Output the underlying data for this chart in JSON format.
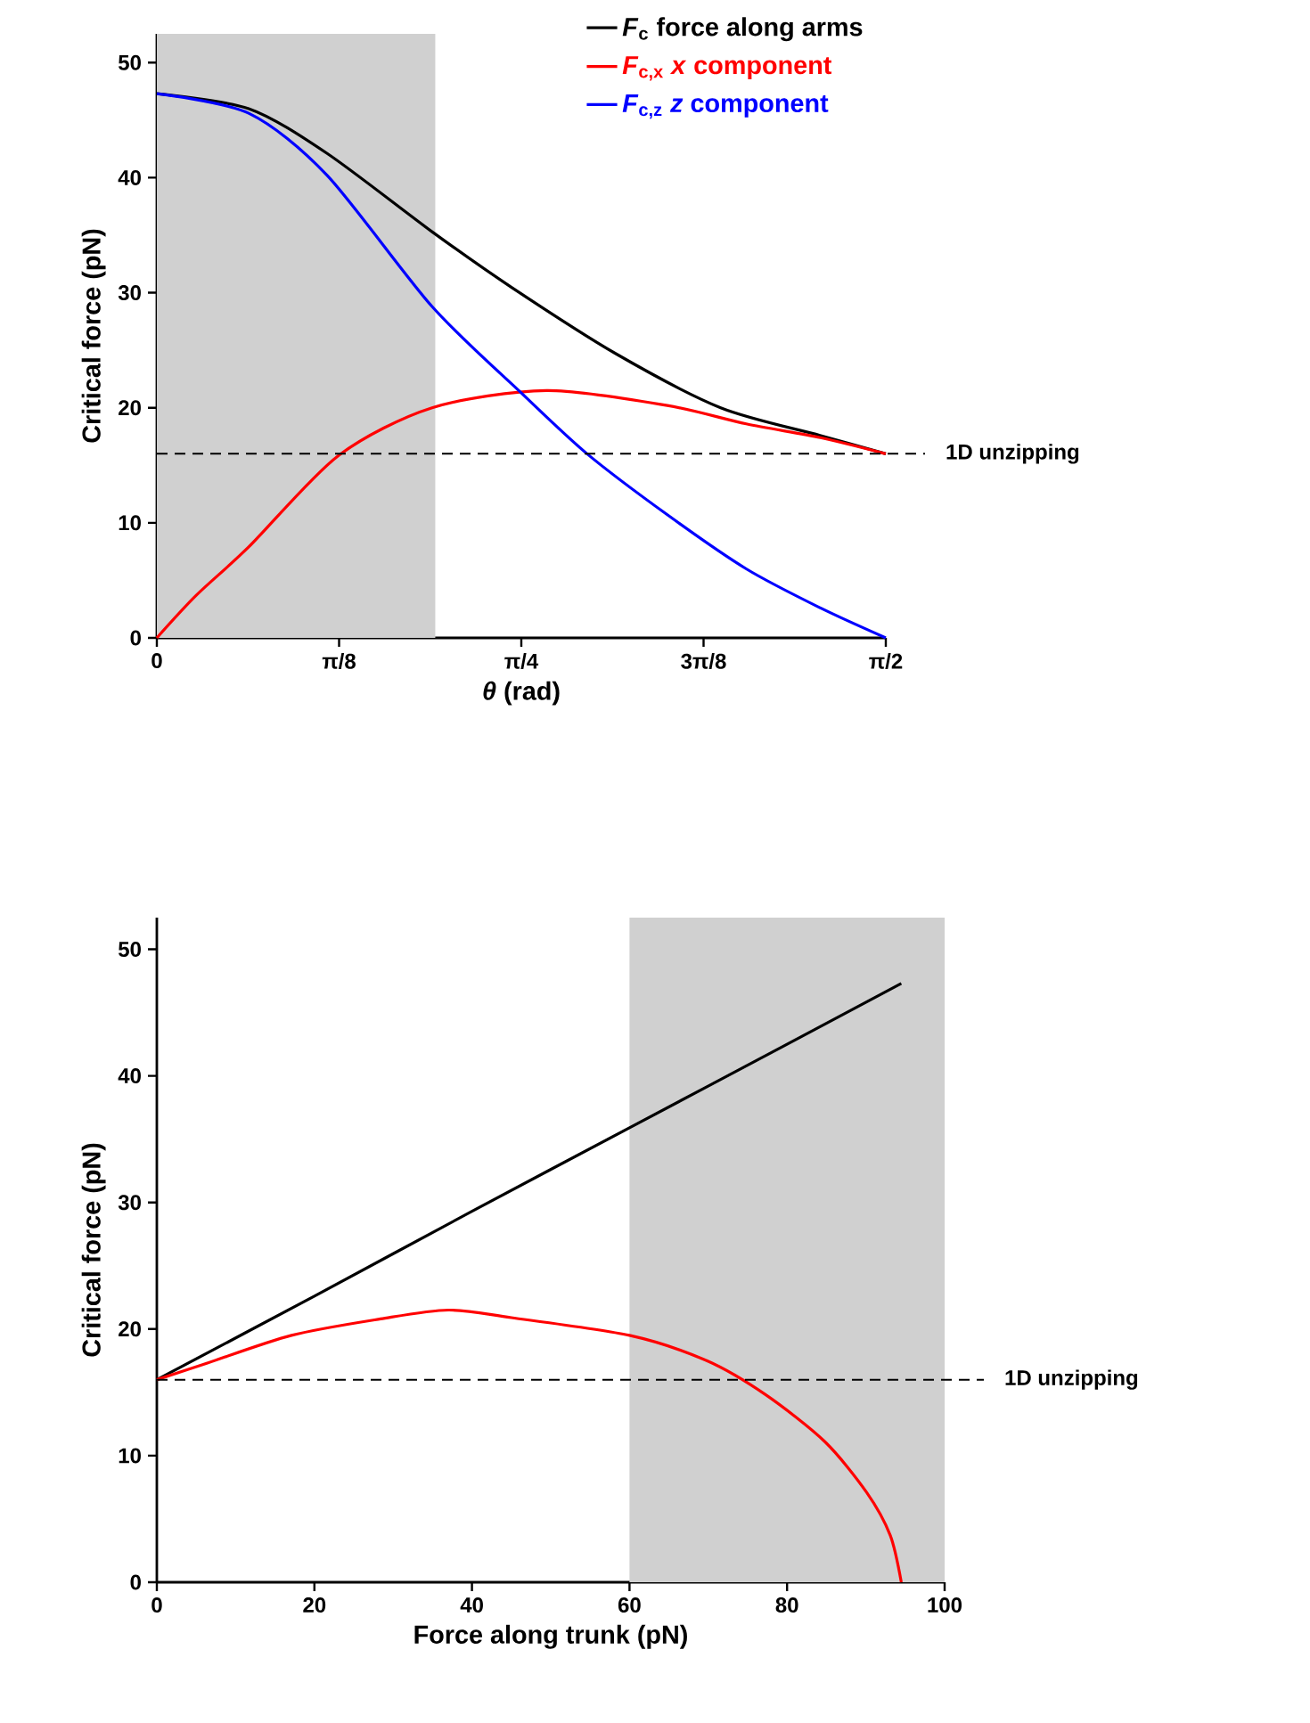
{
  "chart_data": [
    {
      "type": "line",
      "xlabel": "*θ* (rad)",
      "ylabel": "Critical force (pN)",
      "xlim": [
        0,
        1.5708
      ],
      "xticks": [
        0,
        {
          "value": 0.3927,
          "label": "π/8"
        },
        {
          "value": 0.7854,
          "label": "π/4"
        },
        {
          "value": 1.1781,
          "label": "3π/8"
        },
        {
          "value": 1.5708,
          "label": "π/2"
        }
      ],
      "ylim": [
        0,
        52.5
      ],
      "yticks": [
        0,
        10,
        20,
        30,
        40,
        50
      ],
      "legend": "top right",
      "series": [
        {
          "name": "*F*$_{c}$   force along arms",
          "color": "#000000",
          "x": [
            0,
            0.198,
            0.367,
            0.593,
            0.763,
            0.989,
            1.215,
            1.429,
            1.5708
          ],
          "values": [
            47.3,
            46.0,
            42.1,
            35.3,
            30.5,
            24.7,
            20.0,
            17.6,
            16.0
          ]
        },
        {
          "name": "*F*$_{c,x}$  *x* component",
          "color": "#ff0000",
          "x": [
            0,
            0.085,
            0.198,
            0.39,
            0.593,
            0.84,
            1.1,
            1.27,
            1.43,
            1.5708
          ],
          "values": [
            0,
            3.7,
            7.9,
            15.8,
            20.0,
            21.5,
            20.2,
            18.6,
            17.4,
            16.0
          ]
        },
        {
          "name": "*F*$_{c,z}$  *z* component",
          "color": "#0000ff",
          "x": [
            0,
            0.198,
            0.367,
            0.593,
            0.785,
            0.927,
            1.1,
            1.27,
            1.43,
            1.5708
          ],
          "values": [
            47.3,
            45.6,
            40.2,
            28.8,
            21.3,
            16.0,
            10.7,
            6.0,
            2.6,
            0
          ]
        }
      ],
      "ref_lines": [
        {
          "axis": "y",
          "value": 16,
          "label": "1D unzipping",
          "color": "#000000",
          "line_style": "dashed"
        }
      ],
      "bands": [
        {
          "axis": "x",
          "from": 0,
          "to": 0.6,
          "color": "#d0d0d0"
        }
      ]
    },
    {
      "type": "line",
      "xlabel": "Force along trunk (pN)",
      "ylabel": "Critical force (pN)",
      "xlim": [
        0,
        100
      ],
      "xticks": [
        0,
        20,
        40,
        60,
        80,
        100
      ],
      "ylim": [
        0,
        52.5
      ],
      "yticks": [
        0,
        10,
        20,
        30,
        40,
        50
      ],
      "series": [
        {
          "color": "#000000",
          "x": [
            0,
            20,
            40,
            60,
            80,
            94.5
          ],
          "values": [
            16,
            22.6,
            29.3,
            35.9,
            42.5,
            47.3
          ]
        },
        {
          "color": "#ff0000",
          "x": [
            0,
            5.9,
            17.1,
            28.4,
            37,
            45,
            60,
            69.8,
            77.3,
            84.8,
            90.1,
            93.1,
            94.5
          ],
          "values": [
            16,
            17.2,
            19.5,
            20.8,
            21.5,
            20.9,
            19.5,
            17.5,
            14.8,
            11.1,
            7.1,
            3.7,
            0
          ]
        }
      ],
      "ref_lines": [
        {
          "axis": "y",
          "value": 16,
          "label": "1D unzipping",
          "color": "#000000",
          "line_style": "dashed"
        }
      ],
      "bands": [
        {
          "axis": "x",
          "from": 60,
          "to": 100,
          "color": "#d0d0d0"
        }
      ]
    }
  ]
}
